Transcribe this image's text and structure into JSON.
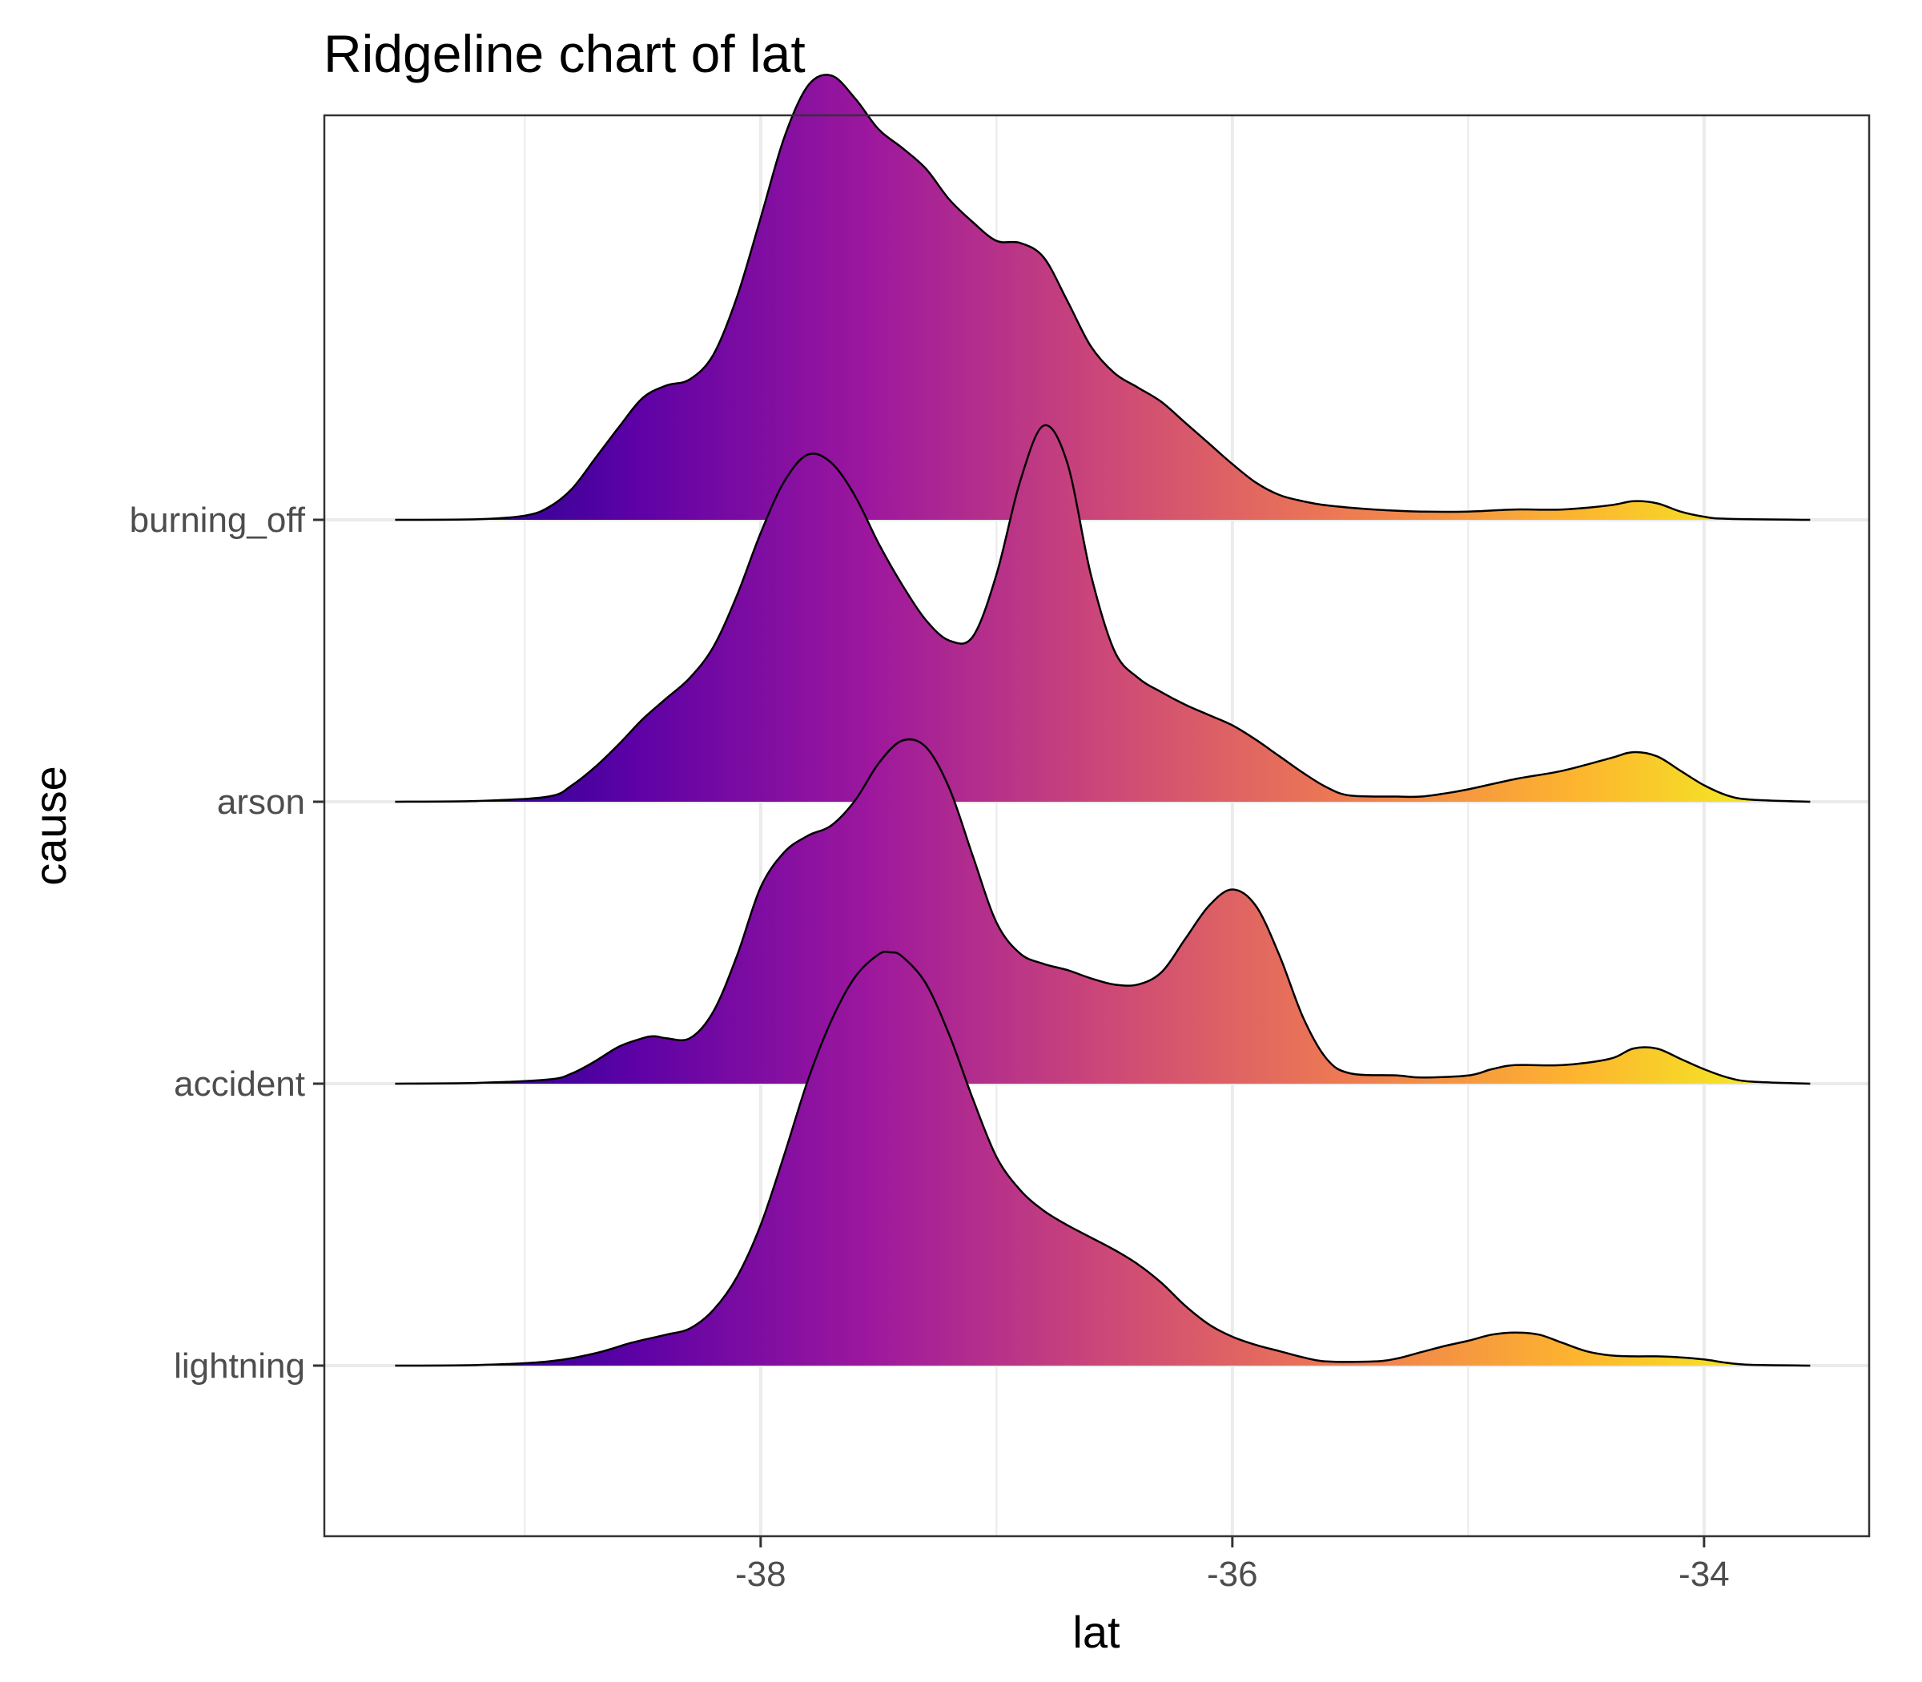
{
  "chart_data": {
    "type": "ridgeline",
    "title": "Ridgeline chart of lat",
    "xlabel": "lat",
    "ylabel": "cause",
    "xlim": [
      -39.85,
      -33.3
    ],
    "x_ticks": [
      -38,
      -36,
      -34
    ],
    "x_minor_ticks": [
      -39,
      -37,
      -35,
      -33
    ],
    "categories": [
      "lightning",
      "accident",
      "arson",
      "burning_off"
    ],
    "x_domain": [
      -39.55,
      -33.55
    ],
    "grid": true,
    "fill_gradient": {
      "palette": "plasma",
      "stops": [
        "#0d0887",
        "#5c01a6",
        "#9c179e",
        "#cc4778",
        "#ed7953",
        "#fdb42f",
        "#f0f921"
      ]
    },
    "series": [
      {
        "category": "lightning",
        "points": [
          [
            -39.55,
            0.0
          ],
          [
            -39.2,
            0.003
          ],
          [
            -38.9,
            0.02
          ],
          [
            -38.7,
            0.06
          ],
          [
            -38.55,
            0.11
          ],
          [
            -38.4,
            0.15
          ],
          [
            -38.3,
            0.18
          ],
          [
            -38.2,
            0.27
          ],
          [
            -38.1,
            0.43
          ],
          [
            -38.0,
            0.68
          ],
          [
            -37.9,
            1.02
          ],
          [
            -37.8,
            1.38
          ],
          [
            -37.7,
            1.67
          ],
          [
            -37.6,
            1.88
          ],
          [
            -37.5,
            1.99
          ],
          [
            -37.45,
            2.0
          ],
          [
            -37.4,
            1.98
          ],
          [
            -37.3,
            1.85
          ],
          [
            -37.2,
            1.6
          ],
          [
            -37.1,
            1.29
          ],
          [
            -37.0,
            1.01
          ],
          [
            -36.9,
            0.85
          ],
          [
            -36.8,
            0.75
          ],
          [
            -36.7,
            0.68
          ],
          [
            -36.6,
            0.62
          ],
          [
            -36.5,
            0.56
          ],
          [
            -36.4,
            0.49
          ],
          [
            -36.3,
            0.4
          ],
          [
            -36.2,
            0.29
          ],
          [
            -36.1,
            0.2
          ],
          [
            -36.0,
            0.14
          ],
          [
            -35.9,
            0.1
          ],
          [
            -35.8,
            0.07
          ],
          [
            -35.7,
            0.04
          ],
          [
            -35.6,
            0.02
          ],
          [
            -35.4,
            0.02
          ],
          [
            -35.3,
            0.035
          ],
          [
            -35.2,
            0.065
          ],
          [
            -35.1,
            0.095
          ],
          [
            -35.0,
            0.12
          ],
          [
            -34.9,
            0.15
          ],
          [
            -34.8,
            0.16
          ],
          [
            -34.7,
            0.15
          ],
          [
            -34.6,
            0.11
          ],
          [
            -34.5,
            0.07
          ],
          [
            -34.4,
            0.05
          ],
          [
            -34.3,
            0.045
          ],
          [
            -34.2,
            0.045
          ],
          [
            -34.1,
            0.04
          ],
          [
            -34.0,
            0.03
          ],
          [
            -33.9,
            0.013
          ],
          [
            -33.8,
            0.004
          ],
          [
            -33.55,
            0.0
          ]
        ]
      },
      {
        "category": "accident",
        "points": [
          [
            -39.55,
            0.0
          ],
          [
            -39.2,
            0.004
          ],
          [
            -38.9,
            0.02
          ],
          [
            -38.8,
            0.05
          ],
          [
            -38.7,
            0.11
          ],
          [
            -38.6,
            0.18
          ],
          [
            -38.5,
            0.22
          ],
          [
            -38.45,
            0.23
          ],
          [
            -38.4,
            0.22
          ],
          [
            -38.3,
            0.22
          ],
          [
            -38.2,
            0.35
          ],
          [
            -38.1,
            0.62
          ],
          [
            -38.0,
            0.95
          ],
          [
            -37.9,
            1.12
          ],
          [
            -37.8,
            1.2
          ],
          [
            -37.7,
            1.25
          ],
          [
            -37.6,
            1.37
          ],
          [
            -37.5,
            1.55
          ],
          [
            -37.4,
            1.66
          ],
          [
            -37.3,
            1.63
          ],
          [
            -37.2,
            1.43
          ],
          [
            -37.1,
            1.1
          ],
          [
            -37.0,
            0.78
          ],
          [
            -36.9,
            0.63
          ],
          [
            -36.8,
            0.58
          ],
          [
            -36.7,
            0.55
          ],
          [
            -36.6,
            0.51
          ],
          [
            -36.5,
            0.48
          ],
          [
            -36.4,
            0.48
          ],
          [
            -36.3,
            0.54
          ],
          [
            -36.2,
            0.7
          ],
          [
            -36.1,
            0.86
          ],
          [
            -36.0,
            0.94
          ],
          [
            -35.9,
            0.86
          ],
          [
            -35.8,
            0.62
          ],
          [
            -35.7,
            0.32
          ],
          [
            -35.6,
            0.12
          ],
          [
            -35.5,
            0.05
          ],
          [
            -35.3,
            0.04
          ],
          [
            -35.2,
            0.03
          ],
          [
            -35.0,
            0.04
          ],
          [
            -34.9,
            0.07
          ],
          [
            -34.8,
            0.09
          ],
          [
            -34.6,
            0.09
          ],
          [
            -34.4,
            0.12
          ],
          [
            -34.3,
            0.17
          ],
          [
            -34.2,
            0.17
          ],
          [
            -34.1,
            0.12
          ],
          [
            -34.0,
            0.07
          ],
          [
            -33.9,
            0.03
          ],
          [
            -33.8,
            0.01
          ],
          [
            -33.55,
            0.0
          ]
        ]
      },
      {
        "category": "arson",
        "points": [
          [
            -39.55,
            0.0
          ],
          [
            -39.2,
            0.004
          ],
          [
            -38.9,
            0.025
          ],
          [
            -38.8,
            0.08
          ],
          [
            -38.7,
            0.17
          ],
          [
            -38.6,
            0.28
          ],
          [
            -38.5,
            0.4
          ],
          [
            -38.4,
            0.5
          ],
          [
            -38.3,
            0.6
          ],
          [
            -38.2,
            0.75
          ],
          [
            -38.1,
            1.0
          ],
          [
            -38.0,
            1.3
          ],
          [
            -37.9,
            1.55
          ],
          [
            -37.8,
            1.68
          ],
          [
            -37.7,
            1.64
          ],
          [
            -37.6,
            1.48
          ],
          [
            -37.5,
            1.25
          ],
          [
            -37.4,
            1.05
          ],
          [
            -37.3,
            0.88
          ],
          [
            -37.2,
            0.78
          ],
          [
            -37.1,
            0.8
          ],
          [
            -37.0,
            1.1
          ],
          [
            -36.9,
            1.55
          ],
          [
            -36.8,
            1.82
          ],
          [
            -36.7,
            1.64
          ],
          [
            -36.6,
            1.1
          ],
          [
            -36.5,
            0.73
          ],
          [
            -36.4,
            0.6
          ],
          [
            -36.3,
            0.53
          ],
          [
            -36.2,
            0.47
          ],
          [
            -36.1,
            0.42
          ],
          [
            -36.0,
            0.37
          ],
          [
            -35.9,
            0.3
          ],
          [
            -35.8,
            0.22
          ],
          [
            -35.7,
            0.14
          ],
          [
            -35.6,
            0.07
          ],
          [
            -35.5,
            0.03
          ],
          [
            -35.3,
            0.025
          ],
          [
            -35.2,
            0.025
          ],
          [
            -35.1,
            0.04
          ],
          [
            -35.0,
            0.06
          ],
          [
            -34.8,
            0.11
          ],
          [
            -34.6,
            0.15
          ],
          [
            -34.4,
            0.21
          ],
          [
            -34.3,
            0.24
          ],
          [
            -34.2,
            0.22
          ],
          [
            -34.1,
            0.15
          ],
          [
            -34.0,
            0.08
          ],
          [
            -33.9,
            0.03
          ],
          [
            -33.8,
            0.01
          ],
          [
            -33.55,
            0.0
          ]
        ]
      },
      {
        "category": "burning_off",
        "points": [
          [
            -39.55,
            0.0
          ],
          [
            -39.2,
            0.003
          ],
          [
            -39.0,
            0.02
          ],
          [
            -38.9,
            0.06
          ],
          [
            -38.8,
            0.15
          ],
          [
            -38.7,
            0.3
          ],
          [
            -38.6,
            0.45
          ],
          [
            -38.5,
            0.59
          ],
          [
            -38.4,
            0.65
          ],
          [
            -38.3,
            0.68
          ],
          [
            -38.2,
            0.8
          ],
          [
            -38.1,
            1.08
          ],
          [
            -38.0,
            1.46
          ],
          [
            -37.9,
            1.85
          ],
          [
            -37.8,
            2.1
          ],
          [
            -37.7,
            2.15
          ],
          [
            -37.6,
            2.04
          ],
          [
            -37.5,
            1.89
          ],
          [
            -37.4,
            1.8
          ],
          [
            -37.3,
            1.7
          ],
          [
            -37.2,
            1.55
          ],
          [
            -37.1,
            1.44
          ],
          [
            -37.0,
            1.35
          ],
          [
            -36.9,
            1.34
          ],
          [
            -36.8,
            1.27
          ],
          [
            -36.7,
            1.06
          ],
          [
            -36.6,
            0.84
          ],
          [
            -36.5,
            0.71
          ],
          [
            -36.4,
            0.64
          ],
          [
            -36.3,
            0.57
          ],
          [
            -36.2,
            0.47
          ],
          [
            -36.1,
            0.37
          ],
          [
            -36.0,
            0.27
          ],
          [
            -35.9,
            0.18
          ],
          [
            -35.8,
            0.12
          ],
          [
            -35.7,
            0.09
          ],
          [
            -35.6,
            0.07
          ],
          [
            -35.4,
            0.05
          ],
          [
            -35.2,
            0.04
          ],
          [
            -35.0,
            0.04
          ],
          [
            -34.8,
            0.05
          ],
          [
            -34.6,
            0.05
          ],
          [
            -34.4,
            0.07
          ],
          [
            -34.3,
            0.09
          ],
          [
            -34.2,
            0.08
          ],
          [
            -34.1,
            0.04
          ],
          [
            -34.0,
            0.015
          ],
          [
            -33.9,
            0.005
          ],
          [
            -33.55,
            0.0
          ]
        ]
      }
    ]
  }
}
